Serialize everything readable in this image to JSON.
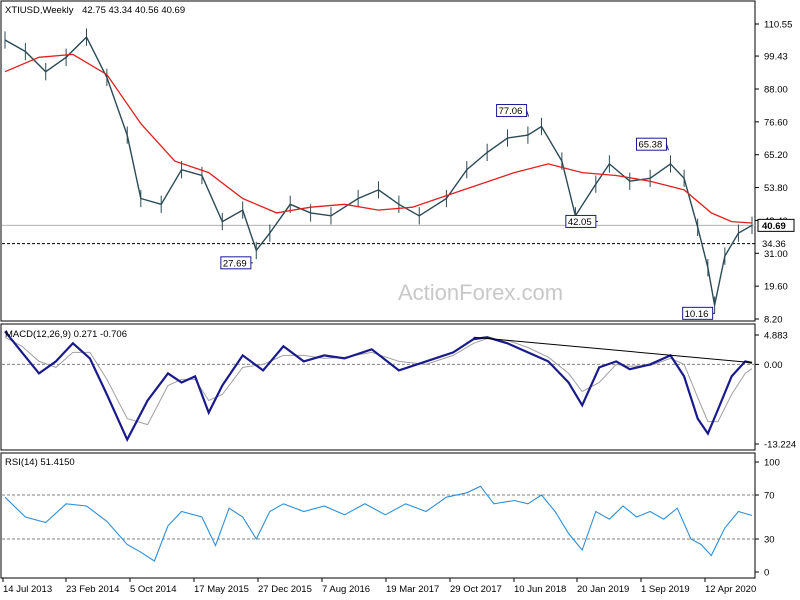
{
  "header": {
    "symbol": "XTIUSD,Weekly",
    "ohlc": "42.75 43.34 40.56 40.69"
  },
  "watermark": "ActionForex.com",
  "colors": {
    "price": "#2b4a55",
    "sma": "#e02020",
    "macd": "#1a1a8c",
    "signal": "#a0a0a0",
    "rsi": "#2f8fd8",
    "trendline": "#000000",
    "label_border": "#1a1a8c"
  },
  "chart_data": [
    {
      "type": "line",
      "name": "price",
      "title": "XTIUSD,Weekly",
      "ylim": [
        8.2,
        116.0
      ],
      "y_ticks": [
        "110.55",
        "99.43",
        "88.00",
        "76.60",
        "65.20",
        "53.80",
        "42.40",
        "31.00",
        "19.60",
        "8.20"
      ],
      "current_price": "40.69",
      "support_level": "34.36",
      "x_ticks": [
        "14 Jul 2013",
        "23 Feb 2014",
        "5 Oct 2014",
        "17 May 2015",
        "27 Dec 2015",
        "7 Aug 2016",
        "19 Mar 2017",
        "29 Oct 2017",
        "10 Jun 2018",
        "20 Jan 2019",
        "1 Sep 2019",
        "12 Apr 2020"
      ],
      "annotations": [
        {
          "label": "27.69",
          "x": 3.65,
          "y": 27.69
        },
        {
          "label": "77.06",
          "x": 7.71,
          "y": 77.06
        },
        {
          "label": "42.05",
          "x": 8.73,
          "y": 42.05
        },
        {
          "label": "65.38",
          "x": 9.77,
          "y": 65.38
        },
        {
          "label": "10.16",
          "x": 10.45,
          "y": 10.16
        }
      ],
      "series": [
        {
          "name": "close",
          "x": [
            0,
            0.3,
            0.6,
            0.9,
            1.2,
            1.5,
            1.8,
            2.0,
            2.3,
            2.6,
            2.9,
            3.2,
            3.5,
            3.7,
            3.9,
            4.2,
            4.5,
            4.8,
            5.2,
            5.5,
            5.8,
            6.1,
            6.5,
            6.8,
            7.1,
            7.4,
            7.7,
            7.9,
            8.2,
            8.4,
            8.7,
            8.9,
            9.2,
            9.5,
            9.8,
            10.0,
            10.2,
            10.35,
            10.45,
            10.6,
            10.8,
            11.0
          ],
          "values": [
            105,
            101,
            94,
            99,
            106,
            92,
            72,
            50,
            48,
            60,
            58,
            42,
            46,
            32,
            38,
            48,
            45,
            44,
            50,
            53,
            48,
            44,
            50,
            60,
            66,
            71,
            72,
            75,
            63,
            44,
            55,
            62,
            56,
            57,
            62,
            57,
            40,
            26,
            13,
            30,
            38,
            40.7
          ]
        },
        {
          "name": "SMA",
          "x": [
            0,
            0.5,
            1.0,
            1.5,
            2.0,
            2.5,
            3.0,
            3.5,
            4.0,
            4.5,
            5.0,
            5.5,
            6.0,
            6.5,
            7.0,
            7.5,
            8.0,
            8.5,
            9.0,
            9.5,
            10.0,
            10.4,
            10.7,
            11.0
          ],
          "values": [
            94,
            99,
            100,
            93,
            76,
            63,
            59,
            50,
            45,
            47,
            48,
            46,
            47,
            51,
            55,
            59,
            62,
            59,
            58,
            56,
            53,
            45,
            42,
            41.5
          ]
        }
      ]
    },
    {
      "type": "line",
      "name": "macd",
      "title": "MACD(12,26,9) 0.271 -0.706",
      "ylim": [
        -13.224,
        4.883
      ],
      "y_ticks": [
        "4.883",
        "0.00",
        "-13.224"
      ],
      "series": [
        {
          "name": "MACD",
          "x": [
            0,
            0.25,
            0.5,
            0.75,
            1.0,
            1.25,
            1.5,
            1.8,
            2.1,
            2.4,
            2.6,
            2.8,
            3.0,
            3.2,
            3.5,
            3.8,
            4.1,
            4.4,
            4.7,
            5.0,
            5.4,
            5.8,
            6.2,
            6.6,
            6.9,
            7.1,
            7.4,
            7.7,
            8.0,
            8.3,
            8.5,
            8.75,
            9.0,
            9.2,
            9.5,
            9.8,
            10.0,
            10.2,
            10.35,
            10.5,
            10.7,
            10.9,
            11.0
          ],
          "values": [
            5.5,
            2,
            -1.5,
            0.5,
            3.5,
            1,
            -5,
            -12.5,
            -6,
            -1.5,
            -3,
            -2,
            -8,
            -3.5,
            1.5,
            -1,
            3,
            0.5,
            1.5,
            1,
            2.5,
            -1,
            0.5,
            2,
            4.2,
            4.5,
            3.5,
            2,
            0.5,
            -3,
            -6.8,
            -0.5,
            0.5,
            -0.8,
            0,
            1.5,
            -2,
            -9,
            -11.5,
            -7.5,
            -2,
            0.5,
            0.27
          ]
        },
        {
          "name": "Signal",
          "x": [
            0,
            0.25,
            0.5,
            0.75,
            1.0,
            1.25,
            1.5,
            1.8,
            2.1,
            2.4,
            2.6,
            2.8,
            3.0,
            3.2,
            3.5,
            3.8,
            4.1,
            4.4,
            4.7,
            5.0,
            5.4,
            5.8,
            6.2,
            6.6,
            6.9,
            7.1,
            7.4,
            7.7,
            8.0,
            8.3,
            8.5,
            8.75,
            9.0,
            9.2,
            9.5,
            9.8,
            10.0,
            10.2,
            10.35,
            10.5,
            10.7,
            10.9,
            11.0
          ],
          "values": [
            4.5,
            3,
            0.5,
            -0.5,
            2,
            2,
            -2.5,
            -9,
            -10,
            -3.5,
            -2.5,
            -2.5,
            -6,
            -5,
            -0.5,
            0,
            1.5,
            1.5,
            1,
            1.2,
            2,
            0.5,
            0,
            1.5,
            3.5,
            4.3,
            4,
            2.8,
            1.2,
            -1.5,
            -4.5,
            -3,
            0,
            -0.3,
            -0.2,
            1,
            0,
            -5.5,
            -9.5,
            -9.5,
            -5,
            -1.5,
            -0.71
          ]
        }
      ],
      "trendline": {
        "x": [
          6.9,
          11.0
        ],
        "values": [
          4.5,
          0.3
        ]
      }
    },
    {
      "type": "line",
      "name": "rsi",
      "title": "RSI(14) 51.4150",
      "ylim": [
        0,
        100
      ],
      "y_ticks": [
        "100",
        "70",
        "30",
        "0"
      ],
      "levels": [
        70,
        30
      ],
      "series": [
        {
          "name": "RSI",
          "x": [
            0,
            0.3,
            0.6,
            0.9,
            1.2,
            1.5,
            1.8,
            2.0,
            2.2,
            2.4,
            2.6,
            2.9,
            3.1,
            3.3,
            3.5,
            3.7,
            3.9,
            4.1,
            4.4,
            4.7,
            5.0,
            5.3,
            5.6,
            5.9,
            6.2,
            6.5,
            6.8,
            7.0,
            7.2,
            7.5,
            7.7,
            7.9,
            8.1,
            8.3,
            8.5,
            8.7,
            8.9,
            9.1,
            9.3,
            9.5,
            9.7,
            9.9,
            10.1,
            10.25,
            10.4,
            10.6,
            10.8,
            11.0
          ],
          "values": [
            68,
            50,
            45,
            62,
            60,
            46,
            25,
            18,
            10,
            42,
            55,
            50,
            24,
            58,
            50,
            30,
            55,
            62,
            55,
            60,
            52,
            62,
            52,
            62,
            55,
            68,
            72,
            78,
            62,
            65,
            62,
            70,
            55,
            35,
            20,
            55,
            48,
            60,
            50,
            55,
            48,
            58,
            30,
            25,
            15,
            40,
            55,
            51.4
          ]
        }
      ]
    }
  ]
}
